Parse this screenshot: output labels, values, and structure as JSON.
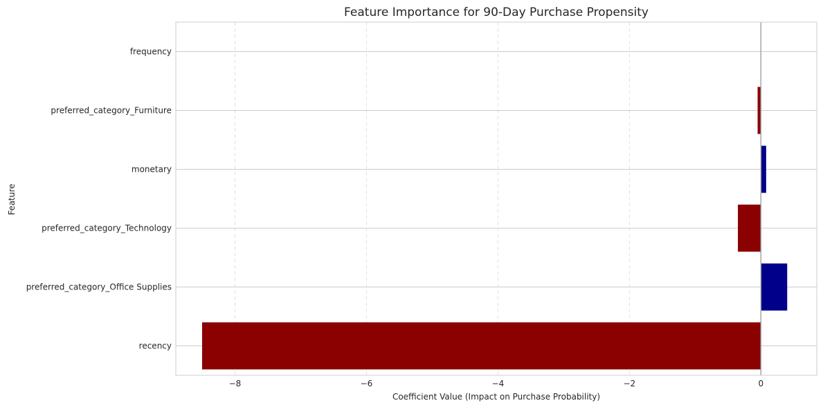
{
  "chart_data": {
    "type": "bar",
    "orientation": "horizontal",
    "title": "Feature Importance for 90-Day Purchase Propensity",
    "xlabel": "Coefficient Value (Impact on Purchase Probability)",
    "ylabel": "Feature",
    "xlim": [
      -8.9,
      0.85
    ],
    "xticks": [
      -8,
      -6,
      -4,
      -2,
      0
    ],
    "xtick_labels": [
      "−8",
      "−6",
      "−4",
      "−2",
      "0"
    ],
    "grid": "on",
    "categories": [
      "frequency",
      "preferred_category_Furniture",
      "monetary",
      "preferred_category_Technology",
      "preferred_category_Office Supplies",
      "recency"
    ],
    "values": [
      0.0,
      -0.05,
      0.08,
      -0.35,
      0.4,
      -8.5
    ],
    "colors": {
      "positive": "#00008b",
      "negative": "#8b0000",
      "zero_line": "#a6a6a6",
      "grid": "#cccccc",
      "frame": "#cccccc"
    }
  }
}
